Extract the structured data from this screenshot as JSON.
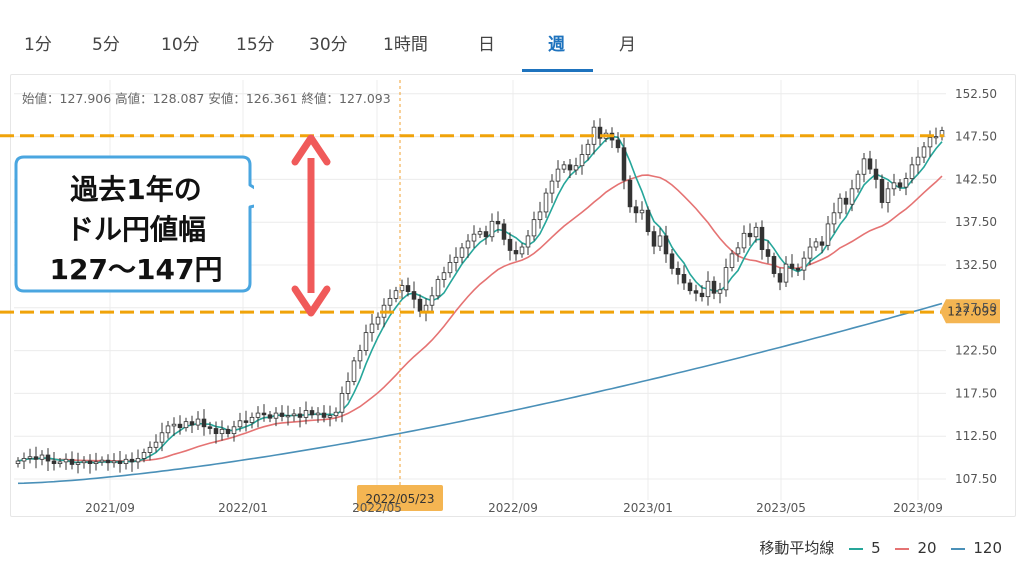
{
  "tabs": [
    {
      "label": "1分",
      "active": false
    },
    {
      "label": "5分",
      "active": false
    },
    {
      "label": "10分",
      "active": false
    },
    {
      "label": "15分",
      "active": false
    },
    {
      "label": "30分",
      "active": false
    },
    {
      "label": "1時間",
      "active": false
    },
    {
      "label": "日",
      "active": false
    },
    {
      "label": "週",
      "active": true
    },
    {
      "label": "月",
      "active": false
    }
  ],
  "ohlc_readout": "始値：127.906 高値：128.087 安値：126.361 終値：127.093",
  "callout": {
    "lines": [
      "過去1年の",
      "ドル円値幅",
      "127〜147円"
    ]
  },
  "legend": {
    "title": "移動平均線",
    "items": [
      {
        "label": "5",
        "color": "#26a69a"
      },
      {
        "label": "20",
        "color": "#e57373"
      },
      {
        "label": "120",
        "color": "#4a90b8"
      }
    ]
  },
  "colors": {
    "accent": "#1e73be",
    "dashed_range": "#f0a30a",
    "arrow": "#f05a5a",
    "callout_border": "#4aa6e0",
    "price_badge": "#f4b552",
    "candle": "#333333"
  },
  "chart_data": {
    "type": "candlestick",
    "x_tick_labels": [
      "2021/09",
      "2022/01",
      "2022/05",
      "2022/09",
      "2023/01",
      "2023/05",
      "2023/09"
    ],
    "y_ticks": [
      107.5,
      112.5,
      117.5,
      122.5,
      127.5,
      132.5,
      137.5,
      142.5,
      147.5,
      152.5
    ],
    "y_tick_labels": [
      "107.50",
      "112.50",
      "117.50",
      "122.50",
      "127.50",
      "132.50",
      "137.50",
      "142.50",
      "147.50",
      "152.50"
    ],
    "ylim": [
      105.5,
      155
    ],
    "last_price": 127.093,
    "last_price_label": "127.093",
    "crosshair_date_label": "2022/05/23",
    "range_lines": [
      147.6,
      127.0
    ],
    "grid": true,
    "legend_position": "bottom-right",
    "closes": [
      109.6,
      109.9,
      110.1,
      109.8,
      110.3,
      109.6,
      109.3,
      109.5,
      109.8,
      109.2,
      109.4,
      109.6,
      109.3,
      109.5,
      109.7,
      109.4,
      109.6,
      109.3,
      109.8,
      109.5,
      109.9,
      110.6,
      111.2,
      111.8,
      112.9,
      113.7,
      113.9,
      113.5,
      114.2,
      113.8,
      114.5,
      113.6,
      113.4,
      112.8,
      113.3,
      112.8,
      113.6,
      114.3,
      114.1,
      114.7,
      115.2,
      115.0,
      114.6,
      115.2,
      114.8,
      114.9,
      115.1,
      114.7,
      115.5,
      115.0,
      115.2,
      114.7,
      114.9,
      115.3,
      117.5,
      118.9,
      121.3,
      122.5,
      124.6,
      125.6,
      126.4,
      127.8,
      128.6,
      129.5,
      130.1,
      129.4,
      128.5,
      127.1,
      127.8,
      128.9,
      130.8,
      131.6,
      132.8,
      133.4,
      134.5,
      135.3,
      136.1,
      136.4,
      135.8,
      137.6,
      137.3,
      135.5,
      134.2,
      133.8,
      134.6,
      135.9,
      137.8,
      138.7,
      140.9,
      142.3,
      143.7,
      144.2,
      143.6,
      144.1,
      145.4,
      146.6,
      148.6,
      147.3,
      147.9,
      147.1,
      146.2,
      142.4,
      139.3,
      138.6,
      138.9,
      136.4,
      134.7,
      135.9,
      133.8,
      132.1,
      131.4,
      130.4,
      129.5,
      129.2,
      128.8,
      130.6,
      129.2,
      129.6,
      132.2,
      133.8,
      134.5,
      136.2,
      135.8,
      136.9,
      134.3,
      133.5,
      131.5,
      130.5,
      132.6,
      132.1,
      131.9,
      133.3,
      134.6,
      135.2,
      134.8,
      137.3,
      138.6,
      140.3,
      139.6,
      141.4,
      143.1,
      144.9,
      143.7,
      142.5,
      139.8,
      141.4,
      142.1,
      141.6,
      142.6,
      144.2,
      145.1,
      146.3,
      147.4,
      147.5,
      148.2
    ]
  }
}
